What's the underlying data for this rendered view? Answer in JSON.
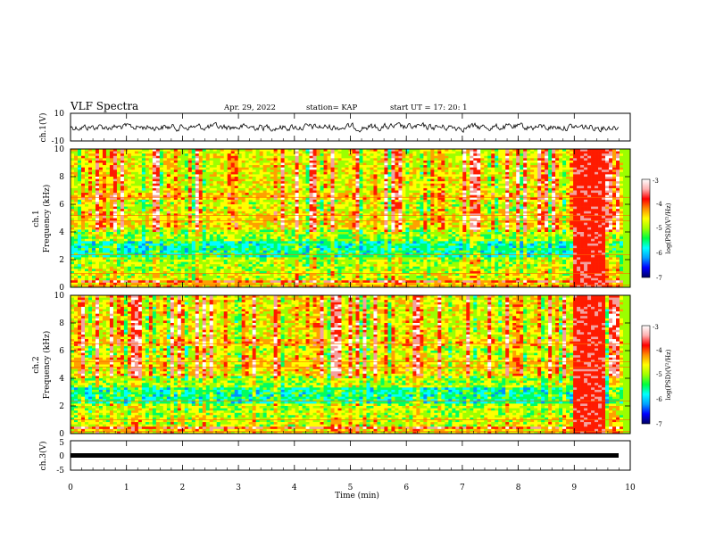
{
  "header": {
    "title": "VLF Spectra",
    "date": "Apr. 29, 2022",
    "station": "station= KAP",
    "start_ut": "start  UT  =    17: 20: 1"
  },
  "colors": {
    "waveform": "#000000",
    "colormap": [
      "#00007a",
      "#0000ff",
      "#0090ff",
      "#00ffff",
      "#00ff60",
      "#9cff00",
      "#ffff00",
      "#ffa000",
      "#ff1a00",
      "#f4a0a0",
      "#ffffff"
    ]
  },
  "chart_data": [
    {
      "type": "line",
      "panel": "ch1-waveform",
      "ylabel": "ch.1(V)",
      "ylim": [
        -10,
        10
      ],
      "y_ticks": [
        "10",
        "-10"
      ],
      "description_values": "noise waveform centered near 0 V, amplitude about ±3 V"
    },
    {
      "type": "heatmap",
      "panel": "ch1-spectrogram",
      "ylabel_line1": "ch.1",
      "ylabel_line2": "Frequency (kHz)",
      "ylim": [
        0,
        10
      ],
      "y_ticks": [
        "0",
        "2",
        "4",
        "6",
        "8",
        "10"
      ],
      "xlim": [
        0,
        10
      ],
      "dominant_bands_khz": [
        [
          0,
          0.3
        ],
        [
          0.5,
          1.2
        ],
        [
          2.2,
          3.3
        ],
        [
          4.2,
          5.5
        ],
        [
          6.3,
          6.8
        ]
      ],
      "high_power_segment_min": [
        9.0,
        9.55
      ],
      "colorbar": {
        "label": "log(PSD)(V²/Hz)",
        "range": [
          -7,
          -3
        ],
        "ticks": [
          "-3",
          "-4",
          "-5",
          "-6",
          "-7"
        ]
      }
    },
    {
      "type": "heatmap",
      "panel": "ch2-spectrogram",
      "ylabel_line1": "ch.2",
      "ylabel_line2": "Frequency (kHz)",
      "ylim": [
        0,
        10
      ],
      "y_ticks": [
        "0",
        "2",
        "4",
        "6",
        "8",
        "10"
      ],
      "xlim": [
        0,
        10
      ],
      "dominant_bands_khz": [
        [
          0,
          0.3
        ],
        [
          0.5,
          1.2
        ],
        [
          2.2,
          3.3
        ],
        [
          4.2,
          5.5
        ],
        [
          6.3,
          6.8
        ]
      ],
      "high_power_segment_min": [
        9.0,
        9.55
      ],
      "colorbar": {
        "label": "log(PSD)(V²/Hz)",
        "range": [
          -7,
          -3
        ],
        "ticks": [
          "-3",
          "-4",
          "-5",
          "-6",
          "-7"
        ]
      }
    },
    {
      "type": "line",
      "panel": "ch3-waveform",
      "ylabel": "ch.3(V)",
      "ylim": [
        -5,
        5
      ],
      "y_ticks": [
        "5",
        "0",
        "-5"
      ],
      "constant_value": 0,
      "x": [
        0,
        9.85
      ]
    }
  ],
  "x_axis": {
    "label": "Time (min)",
    "ticks": [
      "0",
      "1",
      "2",
      "3",
      "4",
      "5",
      "6",
      "7",
      "8",
      "9",
      "10"
    ],
    "range": [
      0,
      10
    ]
  }
}
